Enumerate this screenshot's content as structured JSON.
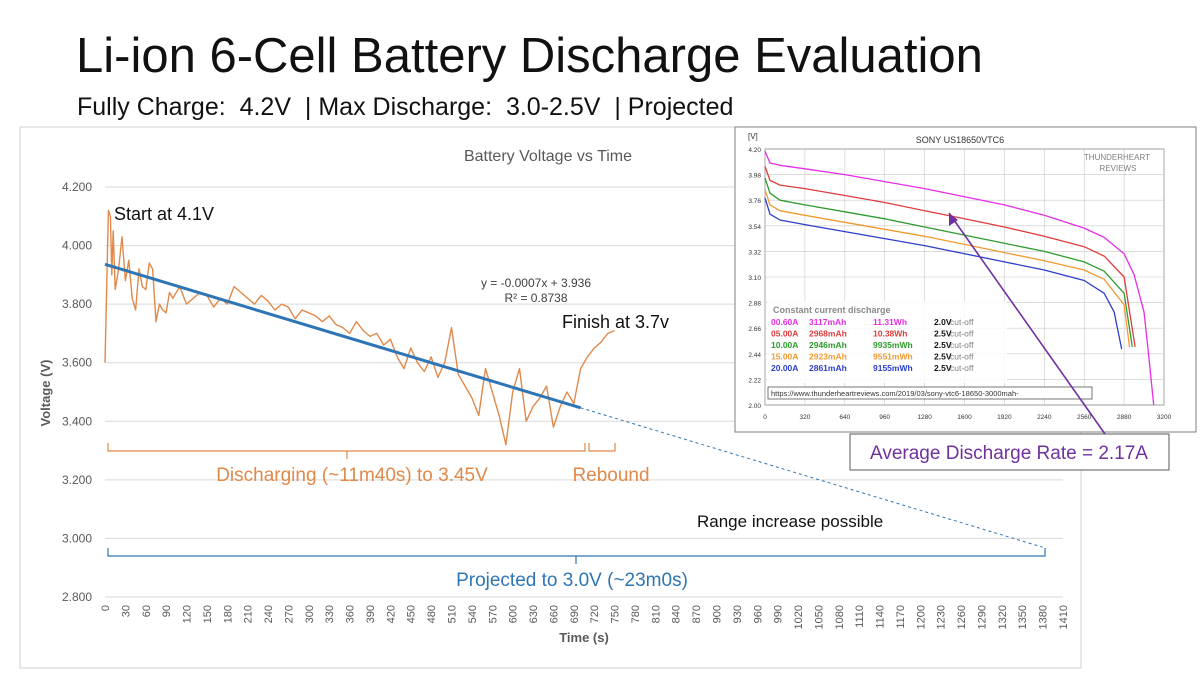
{
  "slide": {
    "title": "Li-ion 6-Cell Battery Discharge Evaluation",
    "subtitle_prefix": "Fully Charge:",
    "full_charge": "4.2V",
    "subtitle_mid": "| Max Discharge:",
    "max_discharge": "3.0-2.5V",
    "subtitle_suffix": "| Projected"
  },
  "chart_data": [
    {
      "type": "line",
      "title": "Battery Voltage vs Time",
      "xlabel": "Time (s)",
      "ylabel": "Voltage (V)",
      "xlim": [
        0,
        1410
      ],
      "ylim": [
        2.8,
        4.2
      ],
      "x_ticks": [
        0,
        30,
        60,
        90,
        120,
        150,
        180,
        210,
        240,
        270,
        300,
        330,
        360,
        390,
        420,
        450,
        480,
        510,
        540,
        570,
        600,
        630,
        660,
        690,
        720,
        750,
        780,
        810,
        840,
        870,
        900,
        930,
        960,
        990,
        1020,
        1050,
        1080,
        1110,
        1140,
        1170,
        1200,
        1230,
        1260,
        1290,
        1320,
        1350,
        1380,
        1410
      ],
      "y_ticks": [
        "2.800",
        "3.000",
        "3.200",
        "3.400",
        "3.600",
        "3.800",
        "4.000",
        "4.200"
      ],
      "grid": "horizontal",
      "colors": {
        "measured": "#e0894a",
        "trend": "#2e75b6",
        "projection": "#2e75b6",
        "annotation_orange": "#e0894a",
        "annotation_blue": "#2e75b6"
      },
      "series": [
        {
          "x": [
            0,
            5,
            8,
            10,
            12,
            15,
            20,
            25,
            30,
            35,
            40,
            45,
            50,
            55,
            60,
            65,
            70,
            75,
            80,
            85,
            90,
            95,
            100,
            110,
            120,
            130,
            140,
            150,
            160,
            170,
            180,
            190,
            200,
            210,
            220,
            230,
            240,
            250,
            260,
            270,
            280,
            290,
            300,
            310,
            320,
            330,
            340,
            350,
            360,
            370,
            380,
            390,
            400,
            410,
            420,
            430,
            440,
            450,
            460,
            470,
            480,
            490,
            500,
            510,
            520,
            530,
            540,
            550,
            560,
            570,
            580,
            590,
            600,
            610,
            620,
            630,
            640,
            650,
            660,
            670,
            680,
            690,
            700,
            710,
            720,
            730,
            740,
            750
          ],
          "y": [
            3.6,
            4.12,
            4.1,
            3.9,
            4.05,
            3.85,
            3.92,
            4.03,
            3.88,
            3.95,
            3.82,
            3.78,
            3.92,
            3.86,
            3.85,
            3.94,
            3.92,
            3.74,
            3.8,
            3.78,
            3.77,
            3.84,
            3.82,
            3.86,
            3.8,
            3.82,
            3.84,
            3.83,
            3.79,
            3.82,
            3.8,
            3.86,
            3.84,
            3.82,
            3.8,
            3.83,
            3.81,
            3.78,
            3.8,
            3.79,
            3.75,
            3.78,
            3.77,
            3.76,
            3.74,
            3.76,
            3.73,
            3.72,
            3.7,
            3.74,
            3.71,
            3.69,
            3.7,
            3.66,
            3.68,
            3.62,
            3.58,
            3.65,
            3.6,
            3.57,
            3.62,
            3.55,
            3.6,
            3.72,
            3.56,
            3.52,
            3.48,
            3.42,
            3.58,
            3.5,
            3.42,
            3.32,
            3.5,
            3.58,
            3.4,
            3.45,
            3.48,
            3.52,
            3.38,
            3.45,
            3.5,
            3.46,
            3.58,
            3.62,
            3.65,
            3.67,
            3.7,
            3.71
          ]
        },
        {
          "name": "trend",
          "x": [
            0,
            700
          ],
          "y": [
            3.936,
            3.446
          ]
        },
        {
          "name": "projection",
          "x": [
            700,
            1380
          ],
          "y": [
            3.446,
            2.97
          ]
        }
      ],
      "annotations": {
        "start": "Start at 4.1V",
        "finish": "Finish at 3.7v",
        "equation": "y = -0.0007x + 3.936",
        "r_squared": "R² = 0.8738",
        "discharging": "Discharging (~11m40s) to 3.45V",
        "rebound": "Rebound",
        "range": "Range increase possible",
        "projected": "Projected to 3.0V (~23m0s)",
        "average_rate": "Average Discharge Rate = 2.17A"
      }
    },
    {
      "type": "line",
      "title": "SONY US18650VTC6",
      "watermark": "THUNDERHEART REVIEWS",
      "y_unit": "[V]",
      "xlim": [
        0,
        3200
      ],
      "ylim": [
        2.0,
        4.2
      ],
      "x_ticks": [
        0,
        320,
        640,
        960,
        1280,
        1600,
        1920,
        2240,
        2560,
        2880,
        3200
      ],
      "y_ticks": [
        "2.00",
        "2.22",
        "2.44",
        "2.66",
        "2.88",
        "3.10",
        "3.32",
        "3.54",
        "3.76",
        "3.98",
        "4.20"
      ],
      "legend_title": "Constant current discharge",
      "url": "https://www.thunderheartreviews.com/2019/03/sony-vtc6-18650-3000mah-",
      "series": [
        {
          "name": "00.60A",
          "capacity": "3117mAh",
          "energy": "11.31Wh",
          "cutoff_value": "2.0V",
          "cutoff_label": "cut-off",
          "color": "#e62ee6",
          "x": [
            0,
            40,
            120,
            320,
            640,
            960,
            1280,
            1600,
            1920,
            2240,
            2560,
            2720,
            2880,
            2960,
            3040,
            3080,
            3117
          ],
          "y": [
            4.18,
            4.08,
            4.06,
            4.03,
            3.98,
            3.92,
            3.86,
            3.79,
            3.72,
            3.63,
            3.52,
            3.44,
            3.3,
            3.12,
            2.8,
            2.4,
            2.0
          ]
        },
        {
          "name": "05.00A",
          "capacity": "2968mAh",
          "energy": "10.38Wh",
          "cutoff_value": "2.5V",
          "cutoff_label": "cut-off",
          "color": "#e03c3c",
          "x": [
            0,
            40,
            120,
            320,
            640,
            960,
            1280,
            1600,
            1920,
            2240,
            2560,
            2720,
            2880,
            2968
          ],
          "y": [
            4.05,
            3.93,
            3.89,
            3.86,
            3.8,
            3.74,
            3.67,
            3.6,
            3.53,
            3.45,
            3.36,
            3.28,
            3.1,
            2.5
          ]
        },
        {
          "name": "10.00A",
          "capacity": "2946mAh",
          "energy": "9935mWh",
          "cutoff_value": "2.5V",
          "cutoff_label": "cut-off",
          "color": "#2e9b2e",
          "x": [
            0,
            40,
            120,
            320,
            640,
            960,
            1280,
            1600,
            1920,
            2240,
            2560,
            2720,
            2880,
            2946
          ],
          "y": [
            3.95,
            3.82,
            3.76,
            3.72,
            3.66,
            3.6,
            3.53,
            3.46,
            3.39,
            3.32,
            3.23,
            3.15,
            2.96,
            2.5
          ]
        },
        {
          "name": "15.00A",
          "capacity": "2923mAh",
          "energy": "9551mWh",
          "cutoff_value": "2.5V",
          "cutoff_label": "cut-off",
          "color": "#f09a30",
          "x": [
            0,
            40,
            120,
            320,
            640,
            960,
            1280,
            1600,
            1920,
            2240,
            2560,
            2720,
            2880,
            2923
          ],
          "y": [
            3.85,
            3.72,
            3.67,
            3.63,
            3.57,
            3.51,
            3.45,
            3.38,
            3.31,
            3.24,
            3.16,
            3.08,
            2.86,
            2.5
          ]
        },
        {
          "name": "20.00A",
          "capacity": "2861mAh",
          "energy": "9155mWh",
          "cutoff_value": "2.5V",
          "cutoff_label": "cut-off",
          "color": "#2c3fc8",
          "x": [
            0,
            40,
            120,
            320,
            640,
            960,
            1280,
            1600,
            1920,
            2240,
            2560,
            2720,
            2800,
            2861
          ],
          "y": [
            3.78,
            3.64,
            3.59,
            3.55,
            3.49,
            3.43,
            3.37,
            3.3,
            3.23,
            3.16,
            3.07,
            2.96,
            2.8,
            2.48
          ]
        }
      ]
    }
  ]
}
